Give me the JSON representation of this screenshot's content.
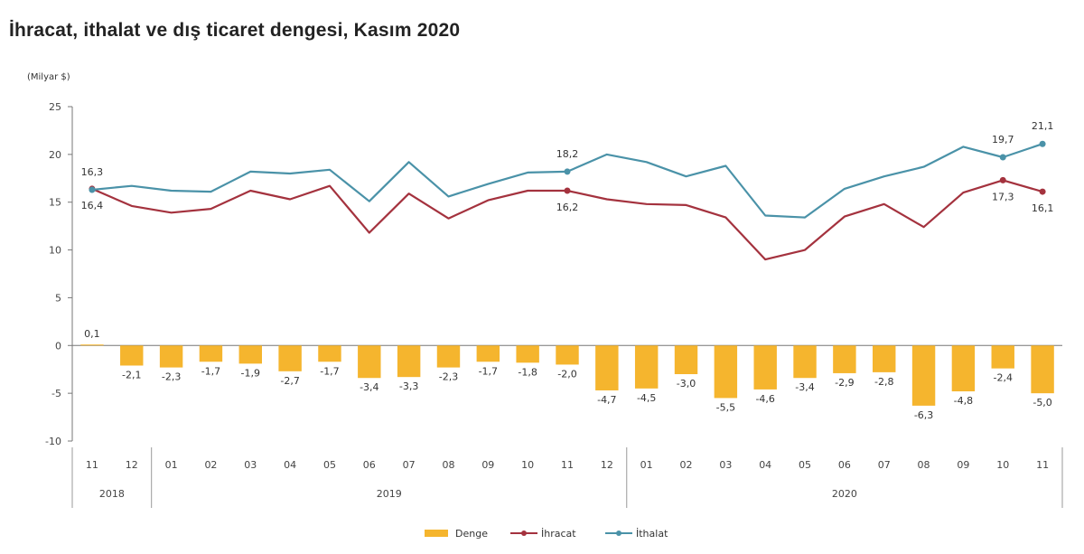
{
  "title": "İhracat, ithalat ve dış ticaret dengesi, Kasım 2020",
  "colors": {
    "denge": "#F5B52E",
    "ihracat": "#A4323E",
    "ithalat": "#4A92A8",
    "axis": "#777777"
  },
  "chart_data": {
    "type": "bar+line",
    "ylabel": "(Milyar $)",
    "ylim": [
      -10,
      25
    ],
    "yticks": [
      -10,
      -5,
      0,
      5,
      10,
      15,
      20,
      25
    ],
    "categories": [
      "11",
      "12",
      "01",
      "02",
      "03",
      "04",
      "05",
      "06",
      "07",
      "08",
      "09",
      "10",
      "11",
      "12",
      "01",
      "02",
      "03",
      "04",
      "05",
      "06",
      "07",
      "08",
      "09",
      "10",
      "11"
    ],
    "year_groups": [
      {
        "label": "2018",
        "start": 0,
        "end": 1
      },
      {
        "label": "2019",
        "start": 2,
        "end": 13
      },
      {
        "label": "2020",
        "start": 14,
        "end": 24
      }
    ],
    "series": [
      {
        "name": "Denge",
        "kind": "bar",
        "values": [
          0.1,
          -2.1,
          -2.3,
          -1.7,
          -1.9,
          -2.7,
          -1.7,
          -3.4,
          -3.3,
          -2.3,
          -1.7,
          -1.8,
          -2.0,
          -4.7,
          -4.5,
          -3.0,
          -5.5,
          -4.6,
          -3.4,
          -2.9,
          -2.8,
          -6.3,
          -4.8,
          -2.4,
          -5.0
        ],
        "labels": [
          "0,1",
          "-2,1",
          "-2,3",
          "-1,7",
          "-1,9",
          "-2,7",
          "-1,7",
          "-3,4",
          "-3,3",
          "-2,3",
          "-1,7",
          "-1,8",
          "-2,0",
          "-4,7",
          "-4,5",
          "-3,0",
          "-5,5",
          "-4,6",
          "-3,4",
          "-2,9",
          "-2,8",
          "-6,3",
          "-4,8",
          "-2,4",
          "-5,0"
        ]
      },
      {
        "name": "İhracat",
        "kind": "line",
        "values": [
          16.4,
          14.6,
          13.9,
          14.3,
          16.2,
          15.3,
          16.7,
          11.8,
          15.9,
          13.3,
          15.2,
          16.2,
          16.2,
          15.3,
          14.8,
          14.7,
          13.4,
          9.0,
          10.0,
          13.5,
          14.8,
          12.4,
          16.0,
          17.3,
          16.1
        ],
        "markers": [
          0,
          12,
          23,
          24
        ],
        "point_labels": [
          {
            "index": 0,
            "text": "16,4",
            "pos": "below"
          },
          {
            "index": 12,
            "text": "16,2",
            "pos": "below"
          },
          {
            "index": 23,
            "text": "17,3",
            "pos": "below"
          },
          {
            "index": 24,
            "text": "16,1",
            "pos": "below"
          }
        ]
      },
      {
        "name": "İthalat",
        "kind": "line",
        "values": [
          16.3,
          16.7,
          16.2,
          16.1,
          18.2,
          18.0,
          18.4,
          15.1,
          19.2,
          15.6,
          16.9,
          18.1,
          18.2,
          20.0,
          19.2,
          17.7,
          18.8,
          13.6,
          13.4,
          16.4,
          17.7,
          18.7,
          20.8,
          19.7,
          21.1
        ],
        "markers": [
          0,
          12,
          23,
          24
        ],
        "point_labels": [
          {
            "index": 0,
            "text": "16,3",
            "pos": "above"
          },
          {
            "index": 12,
            "text": "18,2",
            "pos": "above"
          },
          {
            "index": 23,
            "text": "19,7",
            "pos": "above"
          },
          {
            "index": 24,
            "text": "21,1",
            "pos": "above"
          }
        ]
      }
    ],
    "legend": [
      "Denge",
      "İhracat",
      "İthalat"
    ],
    "legend_position": "bottom-center"
  }
}
